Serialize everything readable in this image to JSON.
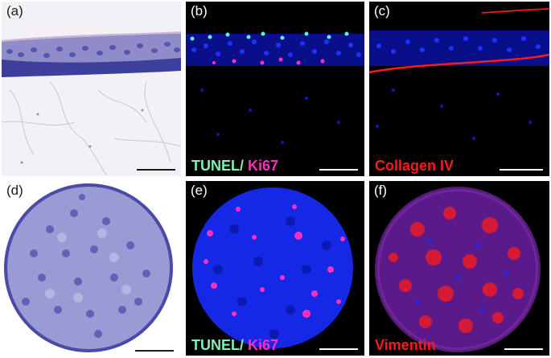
{
  "panels": {
    "a": {
      "label": "(a)"
    },
    "b": {
      "label": "(b)",
      "stain_1": "TUNEL/",
      "stain_2": "Ki67"
    },
    "c": {
      "label": "(c)",
      "stain": "Collagen IV"
    },
    "d": {
      "label": "(d)"
    },
    "e": {
      "label": "(e)",
      "stain_1": "TUNEL/",
      "stain_2": "Ki67"
    },
    "f": {
      "label": "(f)",
      "stain": "Vimentin"
    }
  },
  "colors": {
    "tunel": "#7ff0b8",
    "ki67": "#ff2fbf",
    "collagen": "#ff1a1a",
    "vimentin": "#ff1a1a",
    "nuclei_blue": "#1a2cff",
    "he_purple": "#5a5ab4"
  }
}
